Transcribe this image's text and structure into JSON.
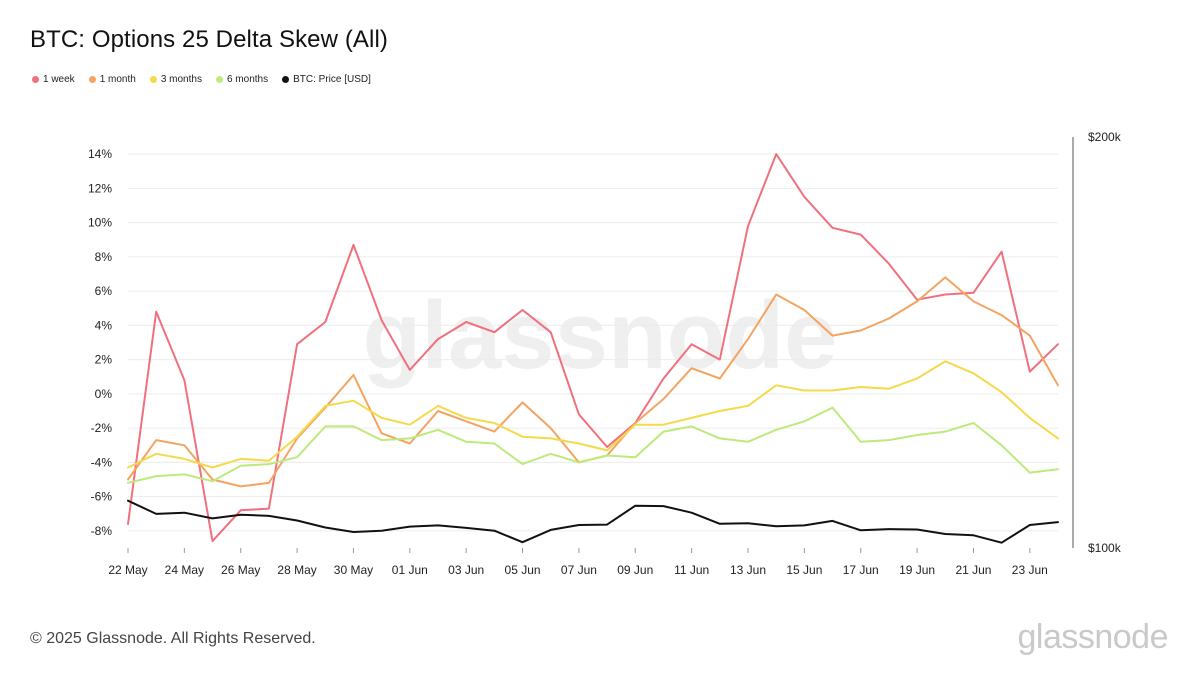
{
  "title": "BTC: Options 25 Delta Skew (All)",
  "legend": [
    {
      "label": "1 week",
      "color": "#f0707e"
    },
    {
      "label": "1 month",
      "color": "#f4a460"
    },
    {
      "label": "3 months",
      "color": "#f5d94a"
    },
    {
      "label": "6 months",
      "color": "#bdea7a"
    },
    {
      "label": "BTC: Price [USD]",
      "color": "#111111"
    }
  ],
  "watermark": "glassnode",
  "footer": "© 2025 Glassnode. All Rights Reserved.",
  "brand": "glassnode",
  "chart_data": {
    "type": "line",
    "x": [
      "22 May",
      "23 May",
      "24 May",
      "25 May",
      "26 May",
      "27 May",
      "28 May",
      "29 May",
      "30 May",
      "31 May",
      "01 Jun",
      "02 Jun",
      "03 Jun",
      "04 Jun",
      "05 Jun",
      "06 Jun",
      "07 Jun",
      "08 Jun",
      "09 Jun",
      "10 Jun",
      "11 Jun",
      "12 Jun",
      "13 Jun",
      "14 Jun",
      "15 Jun",
      "16 Jun",
      "17 Jun",
      "18 Jun",
      "19 Jun",
      "20 Jun",
      "21 Jun",
      "22 Jun",
      "23 Jun",
      "24 Jun"
    ],
    "x_tick_labels": [
      "22 May",
      "24 May",
      "26 May",
      "28 May",
      "30 May",
      "01 Jun",
      "03 Jun",
      "05 Jun",
      "07 Jun",
      "09 Jun",
      "11 Jun",
      "13 Jun",
      "15 Jun",
      "17 Jun",
      "19 Jun",
      "21 Jun",
      "23 Jun"
    ],
    "y_left": {
      "ticks": [
        -8,
        -6,
        -4,
        -2,
        0,
        2,
        4,
        6,
        8,
        10,
        12,
        14
      ],
      "tick_labels": [
        "-8%",
        "-6%",
        "-4%",
        "-2%",
        "0%",
        "2%",
        "4%",
        "6%",
        "8%",
        "10%",
        "12%",
        "14%"
      ],
      "ylim": [
        -9,
        15
      ]
    },
    "y_right": {
      "tick_labels": [
        "$100k",
        "$200k"
      ],
      "ticks": [
        100000,
        200000
      ],
      "ylim": [
        100000,
        200000
      ]
    },
    "grid": true,
    "legend_position": "top-left",
    "series": [
      {
        "name": "1 week",
        "axis": "left",
        "color": "#f0707e",
        "values": [
          -7.6,
          4.8,
          0.8,
          -8.6,
          -6.8,
          -6.7,
          2.9,
          4.2,
          8.7,
          4.3,
          1.4,
          3.2,
          4.2,
          3.6,
          4.9,
          3.6,
          -1.2,
          -3.1,
          -1.7,
          0.9,
          2.9,
          2.0,
          9.8,
          14.0,
          11.5,
          9.7,
          9.3,
          7.6,
          5.5,
          5.8,
          5.9,
          8.3,
          1.3,
          2.9
        ]
      },
      {
        "name": "1 month",
        "axis": "left",
        "color": "#f4a460",
        "values": [
          -5.0,
          -2.7,
          -3.0,
          -5.0,
          -5.4,
          -5.2,
          -2.6,
          -0.8,
          1.1,
          -2.3,
          -2.9,
          -1.0,
          -1.6,
          -2.2,
          -0.5,
          -2.0,
          -4.0,
          -3.6,
          -1.7,
          -0.3,
          1.5,
          0.9,
          3.2,
          5.8,
          4.9,
          3.4,
          3.7,
          4.4,
          5.4,
          6.8,
          5.4,
          4.6,
          3.4,
          0.5
        ]
      },
      {
        "name": "3 months",
        "axis": "left",
        "color": "#f5d94a",
        "values": [
          -4.3,
          -3.5,
          -3.8,
          -4.3,
          -3.8,
          -3.9,
          -2.5,
          -0.7,
          -0.4,
          -1.4,
          -1.8,
          -0.7,
          -1.4,
          -1.7,
          -2.5,
          -2.6,
          -2.9,
          -3.3,
          -1.8,
          -1.8,
          -1.4,
          -1.0,
          -0.7,
          0.5,
          0.2,
          0.2,
          0.4,
          0.3,
          0.9,
          1.9,
          1.2,
          0.1,
          -1.4,
          -2.6
        ]
      },
      {
        "name": "6 months",
        "axis": "left",
        "color": "#bdea7a",
        "values": [
          -5.2,
          -4.8,
          -4.7,
          -5.1,
          -4.2,
          -4.1,
          -3.7,
          -1.9,
          -1.9,
          -2.7,
          -2.6,
          -2.1,
          -2.8,
          -2.9,
          -4.1,
          -3.5,
          -4.0,
          -3.6,
          -3.7,
          -2.2,
          -1.9,
          -2.6,
          -2.8,
          -2.1,
          -1.6,
          -0.8,
          -2.8,
          -2.7,
          -2.4,
          -2.2,
          -1.7,
          -3.0,
          -4.6,
          -4.4
        ]
      },
      {
        "name": "BTC: Price [USD]",
        "axis": "right",
        "color": "#111111",
        "values": [
          111500,
          108300,
          108600,
          107200,
          108100,
          107800,
          106700,
          105000,
          103900,
          104200,
          105200,
          105500,
          104900,
          104200,
          101400,
          104400,
          105600,
          105700,
          110300,
          110200,
          108600,
          105900,
          106000,
          105300,
          105500,
          106600,
          104300,
          104600,
          104500,
          103400,
          103100,
          101300,
          105600,
          106300
        ]
      }
    ]
  }
}
